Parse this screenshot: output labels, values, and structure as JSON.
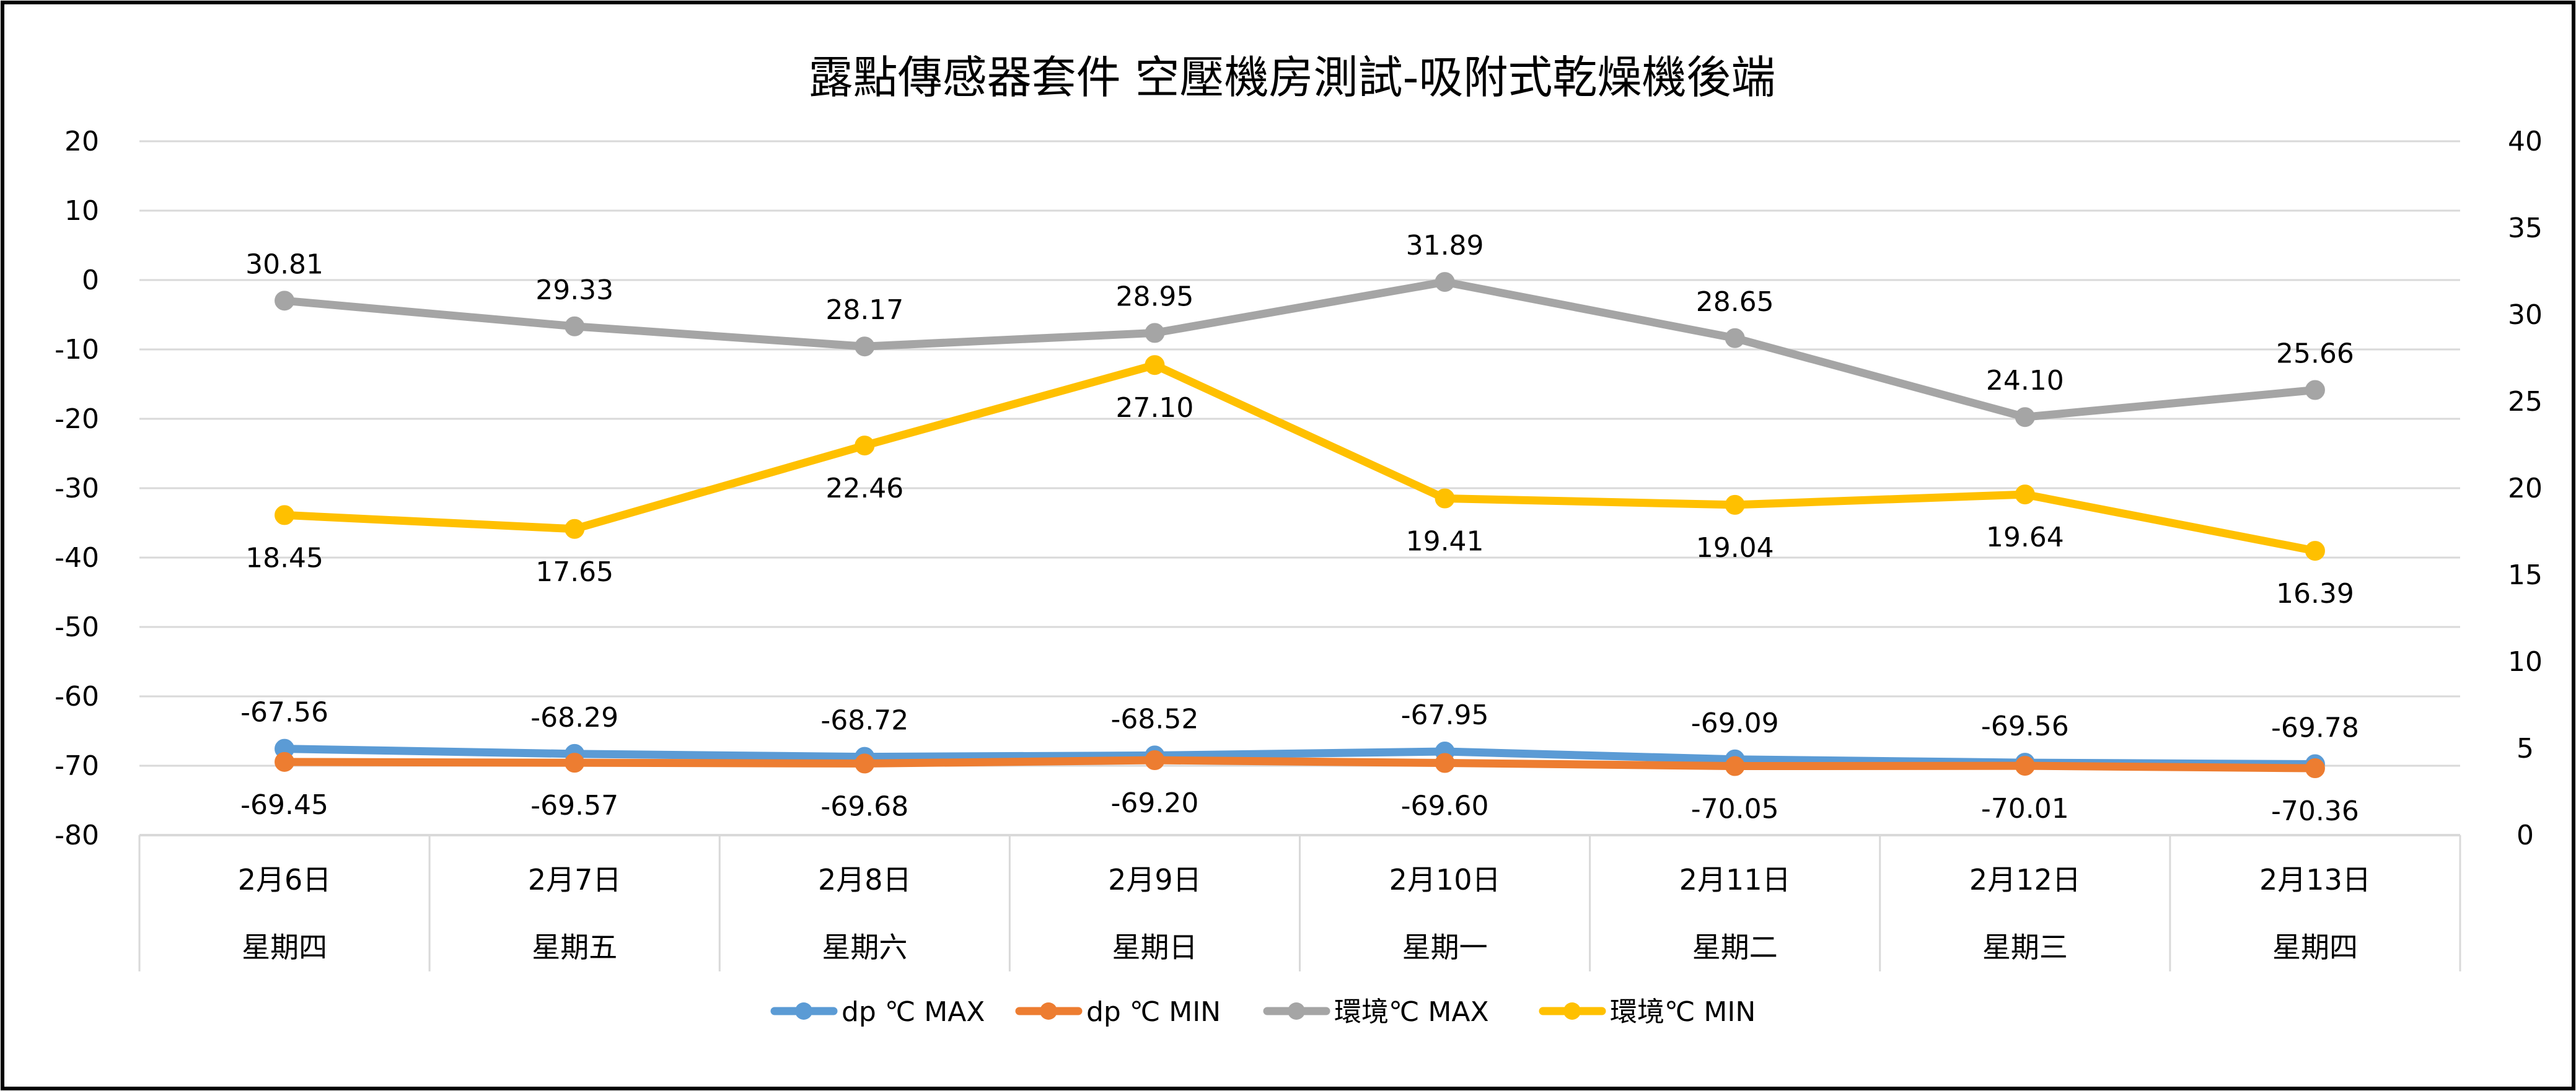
{
  "chart_data": {
    "type": "line",
    "title": "露點傳感器套件  空壓機房測試-吸附式乾燥機後端",
    "categories": [
      "2月6日",
      "2月7日",
      "2月8日",
      "2月9日",
      "2月10日",
      "2月11日",
      "2月12日",
      "2月13日"
    ],
    "subcategories": [
      "星期四",
      "星期五",
      "星期六",
      "星期日",
      "星期一",
      "星期二",
      "星期三",
      "星期四"
    ],
    "y_left": {
      "min": -80,
      "max": 20,
      "step": 10,
      "ticks": [
        "20",
        "10",
        "0",
        "-10",
        "-20",
        "-30",
        "-40",
        "-50",
        "-60",
        "-70",
        "-80"
      ]
    },
    "y_right": {
      "min": 0,
      "max": 40,
      "step": 5,
      "ticks": [
        "40",
        "35",
        "30",
        "25",
        "20",
        "15",
        "10",
        "5",
        "0"
      ]
    },
    "grid": true,
    "legend_position": "bottom",
    "series": [
      {
        "name": "dp ℃ MAX",
        "axis": "left",
        "color": "#5B9BD5",
        "label_position": "above",
        "values": [
          -67.56,
          -68.29,
          -68.72,
          -68.52,
          -67.95,
          -69.09,
          -69.56,
          -69.78
        ],
        "labels": [
          "-67.56",
          "-68.29",
          "-68.72",
          "-68.52",
          "-67.95",
          "-69.09",
          "-69.56",
          "-69.78"
        ]
      },
      {
        "name": "dp ℃ MIN",
        "axis": "left",
        "color": "#ED7D31",
        "label_position": "below",
        "values": [
          -69.45,
          -69.57,
          -69.68,
          -69.2,
          -69.6,
          -70.05,
          -70.01,
          -70.36
        ],
        "labels": [
          "-69.45",
          "-69.57",
          "-69.68",
          "-69.20",
          "-69.60",
          "-70.05",
          "-70.01",
          "-70.36"
        ]
      },
      {
        "name": "環境℃ MAX",
        "axis": "right",
        "color": "#A5A5A5",
        "label_position": "above",
        "values": [
          30.81,
          29.33,
          28.17,
          28.95,
          31.89,
          28.65,
          24.1,
          25.66
        ],
        "labels": [
          "30.81",
          "29.33",
          "28.17",
          "28.95",
          "31.89",
          "28.65",
          "24.10",
          "25.66"
        ]
      },
      {
        "name": "環境℃ MIN",
        "axis": "right",
        "color": "#FFC000",
        "label_position": "below",
        "values": [
          18.45,
          17.65,
          22.46,
          27.1,
          19.41,
          19.04,
          19.64,
          16.39
        ],
        "labels": [
          "18.45",
          "17.65",
          "22.46",
          "27.10",
          "19.41",
          "19.04",
          "19.64",
          "16.39"
        ]
      }
    ]
  }
}
